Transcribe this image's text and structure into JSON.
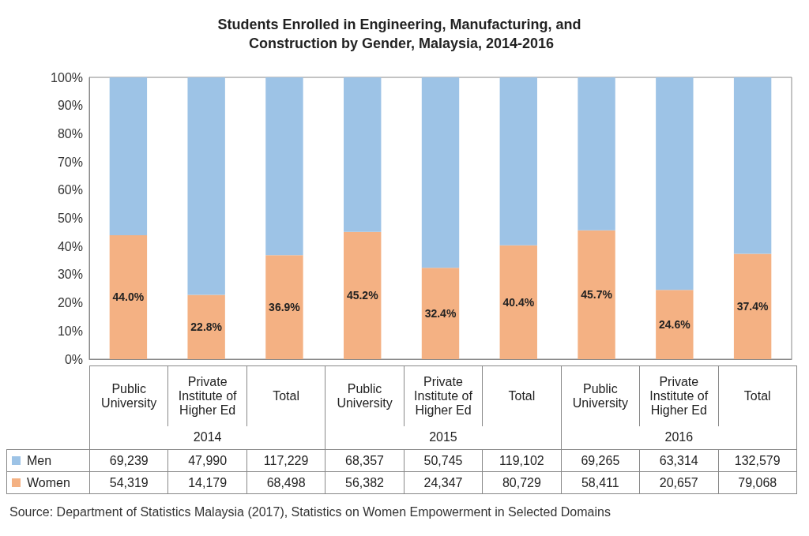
{
  "chart_data": [
    {
      "type": "bar",
      "title": "Students Enrolled in Engineering, Manufacturing, and Construction by Gender, Malaysia, 2014-2016",
      "stacked": true,
      "categories": [
        null,
        null,
        null,
        null,
        null,
        null,
        null,
        null,
        null
      ],
      "ylim": [
        0,
        100
      ],
      "yticks": [
        {
          "value": 0,
          "label": "0%"
        },
        {
          "value": 10,
          "label": "10%"
        },
        {
          "value": 20,
          "label": "20%"
        },
        {
          "value": 30,
          "label": "30%"
        },
        {
          "value": 40,
          "label": "40%"
        },
        {
          "value": 50,
          "label": "50%"
        },
        {
          "value": 60,
          "label": "60%"
        },
        {
          "value": 70,
          "label": "70%"
        },
        {
          "value": 80,
          "label": "80%"
        },
        {
          "value": 90,
          "label": "90%"
        },
        {
          "value": 100,
          "label": "100%"
        }
      ],
      "series": [
        {
          "color": "#f4b183",
          "values": [
            44.0,
            22.8,
            36.9,
            45.2,
            32.4,
            40.4,
            45.7,
            24.6,
            37.4
          ],
          "value_labels": [
            "44.0%",
            "22.8%",
            "36.9%",
            "45.2%",
            "32.4%",
            "40.4%",
            "45.7%",
            "24.6%",
            "37.4%"
          ]
        },
        {
          "color": "#9dc3e6",
          "values": [
            56.0,
            77.2,
            63.1,
            54.8,
            67.6,
            59.6,
            54.3,
            75.4,
            62.6
          ]
        }
      ],
      "annotations": [
        "Source: Department of Statistics Malaysia (2017), Statistics on Women Empowerment in Selected Domains"
      ]
    },
    {
      "type": "other",
      "categories": [
        "Public University",
        "Private Institute of Higher Ed",
        "Total",
        "Public University",
        "Private Institute of Higher Ed",
        "Total",
        "Public University",
        "Private Institute of Higher Ed",
        "Total"
      ],
      "annotations": [
        "2014",
        "2015",
        "2016"
      ],
      "series": [
        {
          "name": "Men",
          "color": "#9dc3e6",
          "values": [
            69239,
            47990,
            117229,
            68357,
            50745,
            119102,
            69265,
            63314,
            132579
          ],
          "value_labels": [
            "69,239",
            "47,990",
            "117,229",
            "68,357",
            "50,745",
            "119,102",
            "69,265",
            "63,314",
            "132,579"
          ]
        },
        {
          "name": "Women",
          "color": "#f4b183",
          "values": [
            54319,
            14179,
            68498,
            56382,
            24347,
            80729,
            58411,
            20657,
            79068
          ],
          "value_labels": [
            "54,319",
            "14,179",
            "68,498",
            "56,382",
            "24,347",
            "80,729",
            "58,411",
            "20,657",
            "79,068"
          ]
        }
      ]
    }
  ]
}
